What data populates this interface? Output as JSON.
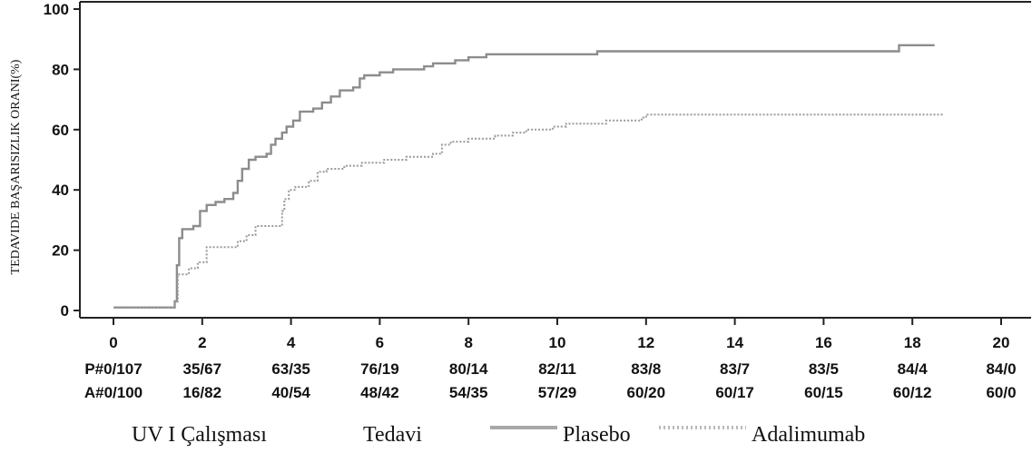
{
  "chart_data": {
    "type": "line",
    "title": "",
    "ylabel": "TEDAVIDE BAŞARISIZLIK ORANI(%)",
    "xlabel": "",
    "xlim": [
      0,
      20
    ],
    "ylim": [
      0,
      100
    ],
    "x_ticks": [
      "0",
      "2",
      "4",
      "6",
      "8",
      "10",
      "12",
      "14",
      "16",
      "18",
      "20"
    ],
    "y_ticks": [
      "0",
      "20",
      "40",
      "60",
      "80",
      "100"
    ],
    "at_risk": {
      "P": [
        "P#0/107",
        "35/67",
        "63/35",
        "76/19",
        "80/14",
        "82/11",
        "83/8",
        "83/7",
        "83/5",
        "84/4",
        "84/0"
      ],
      "A": [
        "A#0/100",
        "16/82",
        "40/54",
        "48/42",
        "54/35",
        "57/29",
        "60/20",
        "60/17",
        "60/15",
        "60/12",
        "60/0"
      ]
    },
    "legend": {
      "study": "UV I Çalışması",
      "treatment": "Tedavi",
      "placebo": "Plasebo",
      "adalimumab": "Adalimumab"
    },
    "series": [
      {
        "name": "Plasebo",
        "color": "#8c8c8c",
        "style": "solid",
        "points": [
          [
            0,
            1
          ],
          [
            1.3,
            1
          ],
          [
            1.38,
            3
          ],
          [
            1.43,
            15
          ],
          [
            1.48,
            24
          ],
          [
            1.55,
            27
          ],
          [
            1.8,
            28
          ],
          [
            1.95,
            33
          ],
          [
            2.1,
            35
          ],
          [
            2.3,
            36
          ],
          [
            2.5,
            37
          ],
          [
            2.7,
            39
          ],
          [
            2.8,
            43
          ],
          [
            2.9,
            47
          ],
          [
            3.05,
            50
          ],
          [
            3.2,
            51
          ],
          [
            3.45,
            52
          ],
          [
            3.55,
            55
          ],
          [
            3.65,
            57
          ],
          [
            3.8,
            59
          ],
          [
            3.9,
            61
          ],
          [
            4.05,
            63
          ],
          [
            4.2,
            66
          ],
          [
            4.5,
            67
          ],
          [
            4.7,
            69
          ],
          [
            4.9,
            71
          ],
          [
            5.1,
            73
          ],
          [
            5.4,
            74
          ],
          [
            5.55,
            77
          ],
          [
            5.65,
            78
          ],
          [
            6.0,
            79
          ],
          [
            6.3,
            80
          ],
          [
            7.0,
            81
          ],
          [
            7.2,
            82
          ],
          [
            7.7,
            83
          ],
          [
            8.0,
            84
          ],
          [
            8.4,
            85
          ],
          [
            10.9,
            86
          ],
          [
            17.6,
            86
          ],
          [
            17.7,
            88
          ],
          [
            18.5,
            88
          ]
        ]
      },
      {
        "name": "Adalimumab",
        "color": "#9a9a9a",
        "style": "dotted",
        "points": [
          [
            0,
            1
          ],
          [
            1.3,
            1
          ],
          [
            1.38,
            3
          ],
          [
            1.45,
            12
          ],
          [
            1.7,
            14
          ],
          [
            1.9,
            16
          ],
          [
            2.1,
            21
          ],
          [
            2.5,
            21
          ],
          [
            2.8,
            23
          ],
          [
            3.0,
            25
          ],
          [
            3.2,
            28
          ],
          [
            3.7,
            28
          ],
          [
            3.8,
            33
          ],
          [
            3.85,
            37
          ],
          [
            3.95,
            40
          ],
          [
            4.1,
            41
          ],
          [
            4.4,
            43
          ],
          [
            4.6,
            46
          ],
          [
            4.8,
            47
          ],
          [
            5.2,
            48
          ],
          [
            5.6,
            49
          ],
          [
            6.1,
            50
          ],
          [
            6.6,
            51
          ],
          [
            7.2,
            52
          ],
          [
            7.4,
            55
          ],
          [
            7.6,
            56
          ],
          [
            8.0,
            57
          ],
          [
            8.6,
            58
          ],
          [
            9.0,
            59
          ],
          [
            9.3,
            60
          ],
          [
            9.9,
            61
          ],
          [
            10.2,
            62
          ],
          [
            11.1,
            63
          ],
          [
            11.9,
            64
          ],
          [
            12.0,
            65
          ],
          [
            18.7,
            65
          ]
        ]
      }
    ]
  }
}
